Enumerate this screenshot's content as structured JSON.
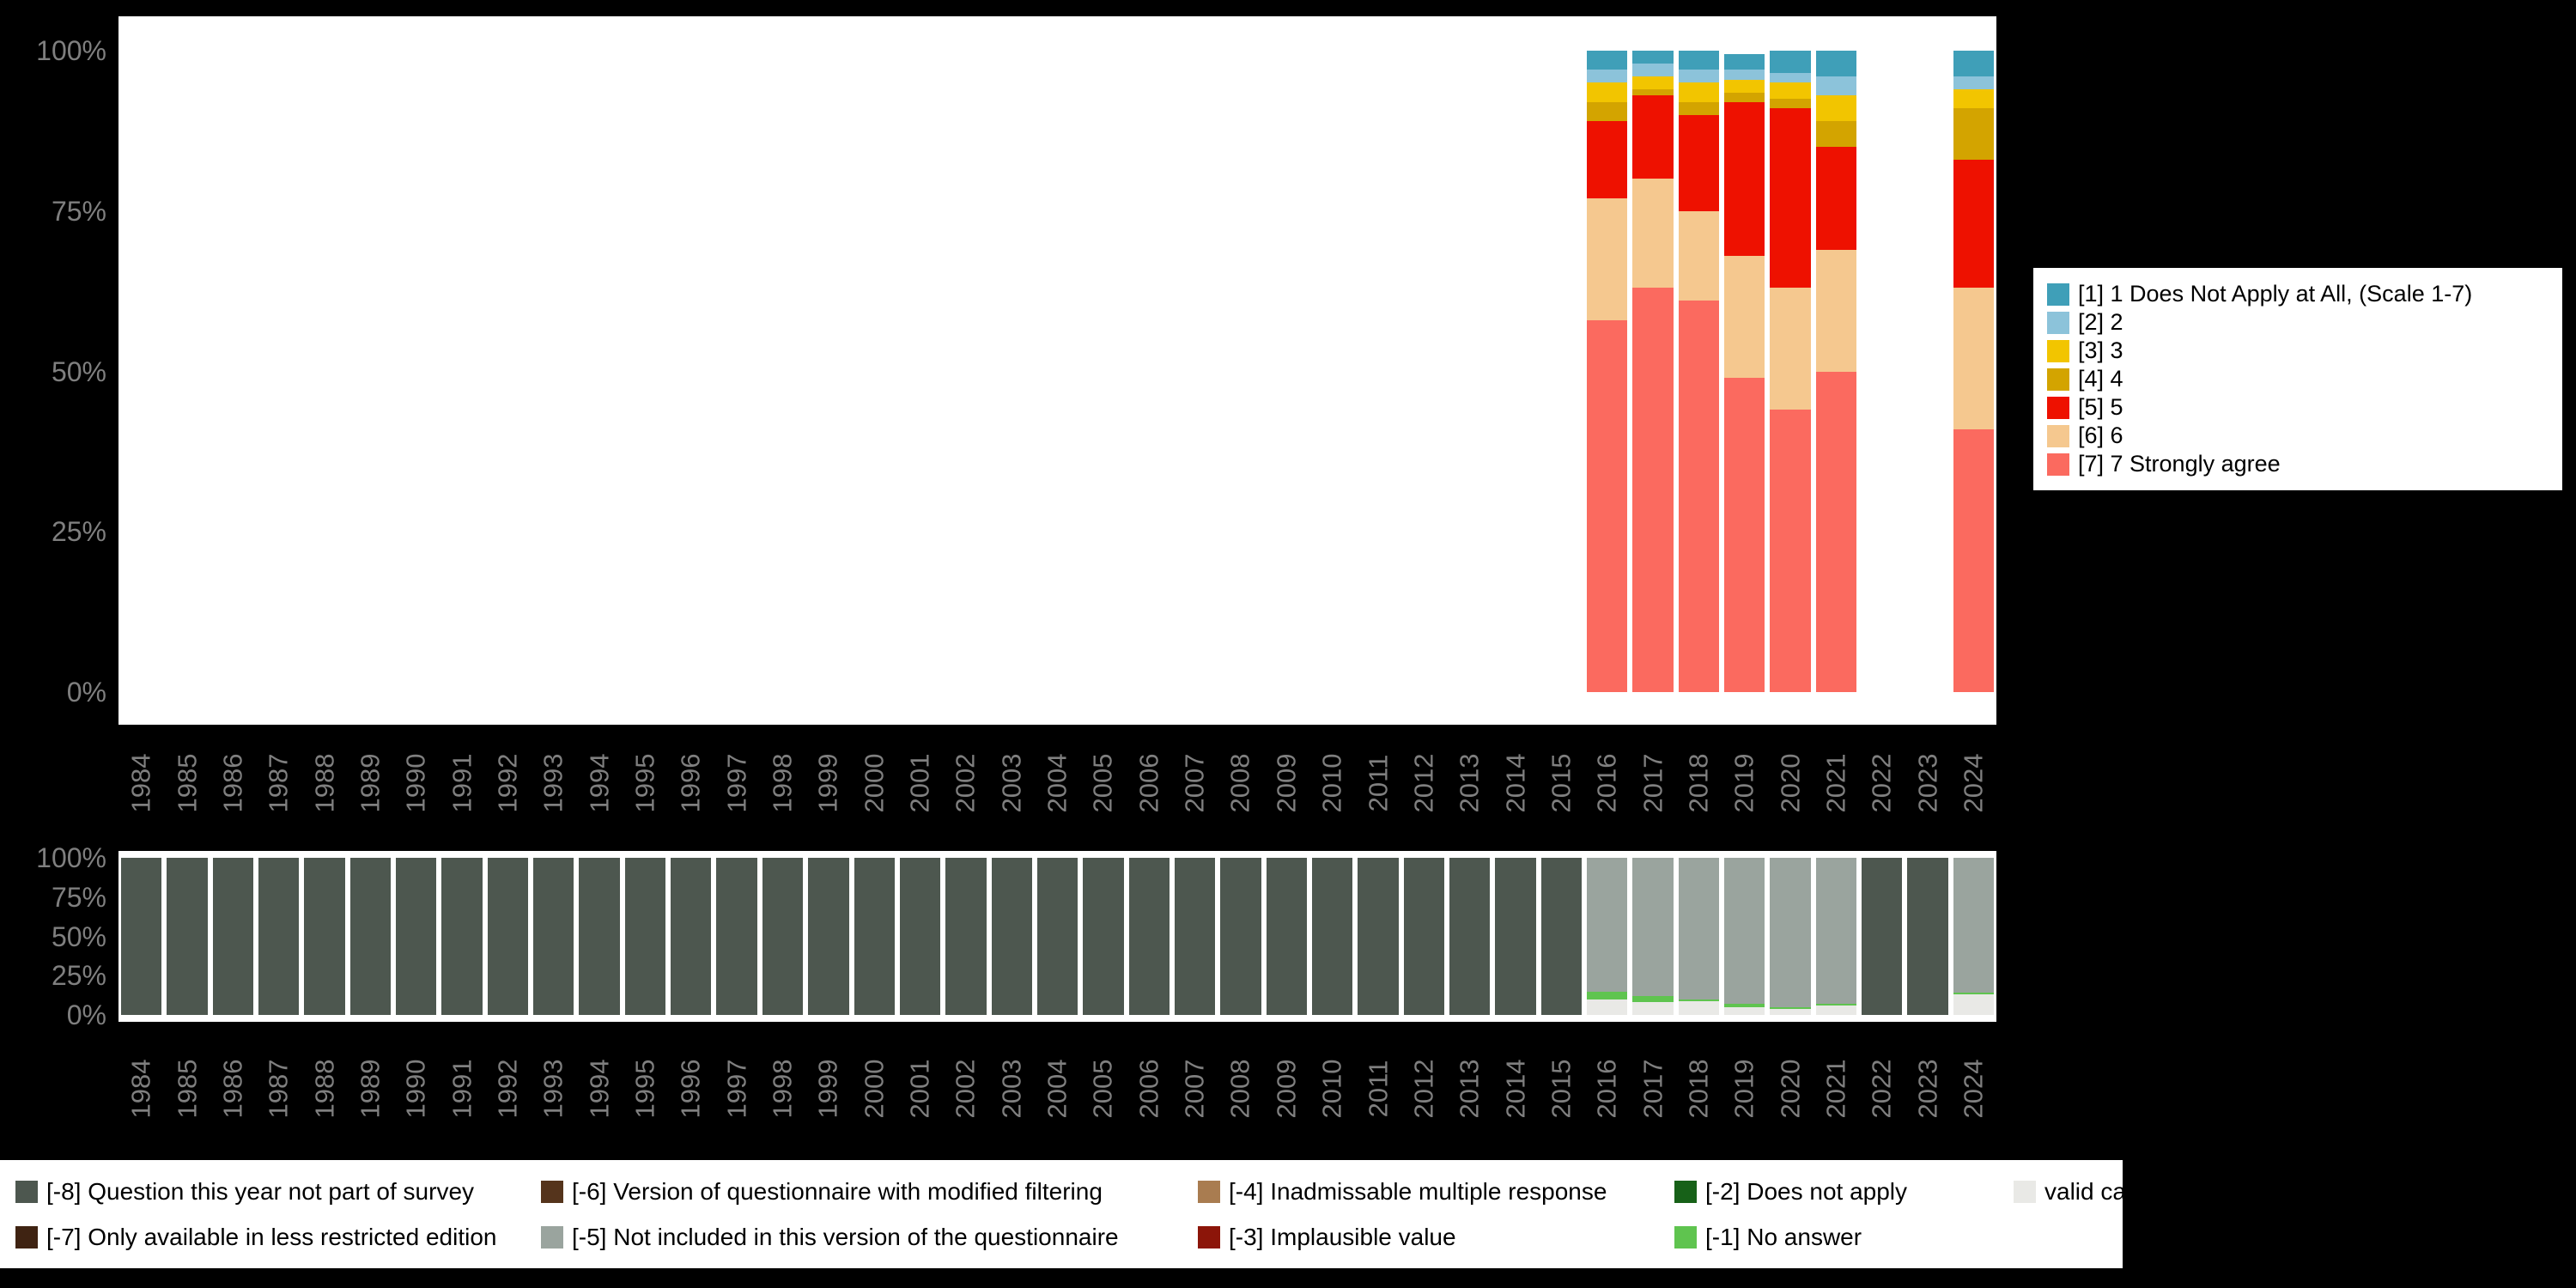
{
  "colors": {
    "background": "#000000",
    "plot_background": "#ffffff",
    "axis_text": "#7f7f7f"
  },
  "main_legend": {
    "items": [
      {
        "label": "[1] 1 Does Not Apply at All, (Scale 1-7)",
        "color": "#3f9fb8"
      },
      {
        "label": "[2] 2",
        "color": "#8cc3da"
      },
      {
        "label": "[3] 3",
        "color": "#f2c500"
      },
      {
        "label": "[4] 4",
        "color": "#d3a400"
      },
      {
        "label": "[5] 5",
        "color": "#ee1100"
      },
      {
        "label": "[6] 6",
        "color": "#f5c88f"
      },
      {
        "label": "[7] 7 Strongly agree",
        "color": "#fb6a5f"
      }
    ]
  },
  "missing_legend": {
    "columns": [
      [
        {
          "label": "[-8] Question this year not part of survey",
          "color": "#4d574f"
        },
        {
          "label": "[-7] Only available in less restricted edition",
          "color": "#3f2312"
        }
      ],
      [
        {
          "label": "[-6] Version of questionnaire with modified filtering",
          "color": "#55341c"
        },
        {
          "label": "[-5] Not included in this version of the questionnaire",
          "color": "#9aa49e"
        }
      ],
      [
        {
          "label": "[-4] Inadmissable multiple response",
          "color": "#a97c50"
        },
        {
          "label": "[-3] Implausible value",
          "color": "#8c1509"
        }
      ],
      [
        {
          "label": "[-2] Does not apply",
          "color": "#176118"
        },
        {
          "label": "[-1] No answer",
          "color": "#5fc44f"
        }
      ],
      [
        {
          "label": "valid cases",
          "color": "#e9e9e6"
        }
      ]
    ]
  },
  "chart_data": [
    {
      "name": "value-distribution",
      "type": "bar",
      "stacked": true,
      "unit": "percent",
      "title": "",
      "xlabel": "",
      "ylabel": "",
      "ylim": [
        0,
        100
      ],
      "grid": false,
      "legend_position": "right",
      "yticks": [
        {
          "v": 0,
          "label": "0%"
        },
        {
          "v": 25,
          "label": "25%"
        },
        {
          "v": 50,
          "label": "50%"
        },
        {
          "v": 75,
          "label": "75%"
        },
        {
          "v": 100,
          "label": "100%"
        }
      ],
      "x": [
        "1984",
        "1985",
        "1986",
        "1987",
        "1988",
        "1989",
        "1990",
        "1991",
        "1992",
        "1993",
        "1994",
        "1995",
        "1996",
        "1997",
        "1998",
        "1999",
        "2000",
        "2001",
        "2002",
        "2003",
        "2004",
        "2005",
        "2006",
        "2007",
        "2008",
        "2009",
        "2010",
        "2011",
        "2012",
        "2013",
        "2014",
        "2015",
        "2016",
        "2017",
        "2018",
        "2019",
        "2020",
        "2021",
        "2022",
        "2023",
        "2024"
      ],
      "series": [
        {
          "name": "[7] 7 Strongly agree",
          "color": "#fb6a5f",
          "values": {
            "2016": 58,
            "2017": 63,
            "2018": 61,
            "2019": 49,
            "2020": 44,
            "2021": 50,
            "2024": 41
          }
        },
        {
          "name": "[6] 6",
          "color": "#f5c88f",
          "values": {
            "2016": 19,
            "2017": 17,
            "2018": 14,
            "2019": 19,
            "2020": 19,
            "2021": 19,
            "2024": 22
          }
        },
        {
          "name": "[5] 5",
          "color": "#ee1100",
          "values": {
            "2016": 12,
            "2017": 13,
            "2018": 15,
            "2019": 24,
            "2020": 28,
            "2021": 16,
            "2024": 20
          }
        },
        {
          "name": "[4] 4",
          "color": "#d3a400",
          "values": {
            "2016": 3,
            "2017": 1,
            "2018": 2,
            "2019": 1.5,
            "2020": 1.5,
            "2021": 4,
            "2024": 8
          }
        },
        {
          "name": "[3] 3",
          "color": "#f2c500",
          "values": {
            "2016": 3,
            "2017": 2,
            "2018": 3,
            "2019": 2,
            "2020": 2.5,
            "2021": 4,
            "2024": 3
          }
        },
        {
          "name": "[2] 2",
          "color": "#8cc3da",
          "values": {
            "2016": 2,
            "2017": 2,
            "2018": 2,
            "2019": 1.5,
            "2020": 1.5,
            "2021": 3,
            "2024": 2
          }
        },
        {
          "name": "[1] 1 Does Not Apply at All, (Scale 1-7)",
          "color": "#3f9fb8",
          "values": {
            "2016": 3,
            "2017": 2,
            "2018": 3,
            "2019": 2.5,
            "2020": 3.5,
            "2021": 4,
            "2024": 4
          }
        }
      ]
    },
    {
      "name": "missing-values-distribution",
      "type": "bar",
      "stacked": true,
      "unit": "percent",
      "title": "",
      "xlabel": "",
      "ylabel": "",
      "ylim": [
        0,
        100
      ],
      "grid": false,
      "legend_position": "bottom",
      "yticks": [
        {
          "v": 0,
          "label": "0%"
        },
        {
          "v": 25,
          "label": "25%"
        },
        {
          "v": 50,
          "label": "50%"
        },
        {
          "v": 75,
          "label": "75%"
        },
        {
          "v": 100,
          "label": "100%"
        }
      ],
      "x": [
        "1984",
        "1985",
        "1986",
        "1987",
        "1988",
        "1989",
        "1990",
        "1991",
        "1992",
        "1993",
        "1994",
        "1995",
        "1996",
        "1997",
        "1998",
        "1999",
        "2000",
        "2001",
        "2002",
        "2003",
        "2004",
        "2005",
        "2006",
        "2007",
        "2008",
        "2009",
        "2010",
        "2011",
        "2012",
        "2013",
        "2014",
        "2015",
        "2016",
        "2017",
        "2018",
        "2019",
        "2020",
        "2021",
        "2022",
        "2023",
        "2024"
      ],
      "series": [
        {
          "name": "valid cases",
          "color": "#e9e9e6",
          "values": {
            "2016": 10,
            "2017": 8,
            "2018": 9,
            "2019": 5,
            "2020": 4,
            "2021": 6,
            "2024": 13
          }
        },
        {
          "name": "[-1] No answer",
          "color": "#5fc44f",
          "values": {
            "2016": 5,
            "2017": 4,
            "2018": 1,
            "2019": 2,
            "2020": 1,
            "2021": 1,
            "2024": 1
          }
        },
        {
          "name": "[-5] Not included in this version of the questionnaire",
          "color": "#9aa49e",
          "values": {
            "2016": 85,
            "2017": 88,
            "2018": 90,
            "2019": 93,
            "2020": 95,
            "2021": 93,
            "2024": 86
          }
        },
        {
          "name": "[-8] Question this year not part of survey",
          "color": "#4d574f",
          "values": {
            "1984": 100,
            "1985": 100,
            "1986": 100,
            "1987": 100,
            "1988": 100,
            "1989": 100,
            "1990": 100,
            "1991": 100,
            "1992": 100,
            "1993": 100,
            "1994": 100,
            "1995": 100,
            "1996": 100,
            "1997": 100,
            "1998": 100,
            "1999": 100,
            "2000": 100,
            "2001": 100,
            "2002": 100,
            "2003": 100,
            "2004": 100,
            "2005": 100,
            "2006": 100,
            "2007": 100,
            "2008": 100,
            "2009": 100,
            "2010": 100,
            "2011": 100,
            "2012": 100,
            "2013": 100,
            "2014": 100,
            "2015": 100,
            "2022": 100,
            "2023": 100
          }
        }
      ]
    }
  ]
}
